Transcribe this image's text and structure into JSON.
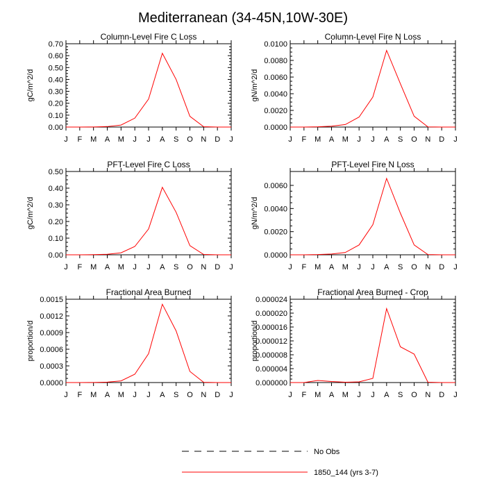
{
  "title": "Mediterranean (34-45N,10W-30E)",
  "chart_data": [
    {
      "type": "line",
      "title": "Column-Level Fire C Loss",
      "ylabel": "gC/m^2/d",
      "categories": [
        "J",
        "F",
        "M",
        "A",
        "M",
        "J",
        "J",
        "A",
        "S",
        "O",
        "N",
        "D",
        "J"
      ],
      "ylim": [
        0,
        0.7
      ],
      "yticks": [
        "0.00",
        "0.10",
        "0.20",
        "0.30",
        "0.40",
        "0.50",
        "0.60",
        "0.70"
      ],
      "series": [
        {
          "name": "1850_144 (yrs 3-7)",
          "color": "#ff0000",
          "values": [
            0.0,
            0.0,
            0.001,
            0.004,
            0.017,
            0.075,
            0.235,
            0.62,
            0.4,
            0.09,
            0.003,
            0.0,
            0.0
          ]
        }
      ]
    },
    {
      "type": "line",
      "title": "Column-Level Fire N Loss",
      "ylabel": "gN/m^2/d",
      "categories": [
        "J",
        "F",
        "M",
        "A",
        "M",
        "J",
        "J",
        "A",
        "S",
        "O",
        "N",
        "D",
        "J"
      ],
      "ylim": [
        0,
        0.01
      ],
      "yticks": [
        "0.0000",
        "0.0020",
        "0.0040",
        "0.0060",
        "0.0080",
        "0.0100"
      ],
      "series": [
        {
          "name": "1850_144 (yrs 3-7)",
          "color": "#ff0000",
          "values": [
            0.0,
            0.0,
            3e-05,
            0.0001,
            0.0003,
            0.0012,
            0.0036,
            0.0092,
            0.0052,
            0.0013,
            2e-05,
            0.0,
            0.0
          ]
        }
      ]
    },
    {
      "type": "line",
      "title": "PFT-Level Fire C Loss",
      "ylabel": "gC/m^2/d",
      "categories": [
        "J",
        "F",
        "M",
        "A",
        "M",
        "J",
        "J",
        "A",
        "S",
        "O",
        "N",
        "D",
        "J"
      ],
      "ylim": [
        0,
        0.5
      ],
      "yticks": [
        "0.00",
        "0.10",
        "0.20",
        "0.30",
        "0.40",
        "0.50"
      ],
      "series": [
        {
          "name": "1850_144 (yrs 3-7)",
          "color": "#ff0000",
          "values": [
            0.0,
            0.0,
            0.001,
            0.003,
            0.012,
            0.05,
            0.155,
            0.405,
            0.255,
            0.055,
            0.002,
            0.0,
            0.0
          ]
        }
      ]
    },
    {
      "type": "line",
      "title": "PFT-Level Fire N Loss",
      "ylabel": "gN/m^2/d",
      "categories": [
        "J",
        "F",
        "M",
        "A",
        "M",
        "J",
        "J",
        "A",
        "S",
        "O",
        "N",
        "D",
        "J"
      ],
      "ylim": [
        0,
        0.0072
      ],
      "yticks": [
        "0.0000",
        "0.0020",
        "0.0040",
        "0.0060"
      ],
      "series": [
        {
          "name": "1850_144 (yrs 3-7)",
          "color": "#ff0000",
          "values": [
            0.0,
            0.0,
            2e-05,
            7e-05,
            0.0002,
            0.00085,
            0.0026,
            0.0066,
            0.0036,
            0.00085,
            2e-05,
            0.0,
            0.0
          ]
        }
      ]
    },
    {
      "type": "line",
      "title": "Fractional Area Burned",
      "ylabel": "proportion/d",
      "categories": [
        "J",
        "F",
        "M",
        "A",
        "M",
        "J",
        "J",
        "A",
        "S",
        "O",
        "N",
        "D",
        "J"
      ],
      "ylim": [
        0,
        0.0015
      ],
      "yticks": [
        "0.0000",
        "0.0003",
        "0.0006",
        "0.0009",
        "0.0012",
        "0.0015"
      ],
      "series": [
        {
          "name": "1850_144 (yrs 3-7)",
          "color": "#ff0000",
          "values": [
            0.0,
            0.0,
            2e-06,
            8e-06,
            3e-05,
            0.00015,
            0.00052,
            0.00141,
            0.00093,
            0.0002,
            5e-06,
            0.0,
            0.0
          ]
        }
      ]
    },
    {
      "type": "line",
      "title": "Fractional Area Burned - Crop",
      "ylabel": "proportion/d",
      "categories": [
        "J",
        "F",
        "M",
        "A",
        "M",
        "J",
        "J",
        "A",
        "S",
        "O",
        "N",
        "D",
        "J"
      ],
      "ylim": [
        0,
        2.4e-05
      ],
      "yticks": [
        "0.000000",
        "0.000004",
        "0.000008",
        "0.000012",
        "0.000016",
        "0.000020",
        "0.000024"
      ],
      "series": [
        {
          "name": "1850_144 (yrs 3-7)",
          "color": "#ff0000",
          "values": [
            0.0,
            0.0,
            6e-07,
            3e-07,
            1e-07,
            2e-07,
            1.2e-06,
            2.13e-05,
            1.03e-05,
            8.2e-06,
            1e-07,
            0.0,
            0.0
          ]
        }
      ]
    }
  ],
  "legend": {
    "items": [
      {
        "label": "No Obs",
        "style": "dashed",
        "color": "#000000"
      },
      {
        "label": "1850_144 (yrs 3-7)",
        "style": "solid",
        "color": "#ff0000"
      }
    ]
  }
}
